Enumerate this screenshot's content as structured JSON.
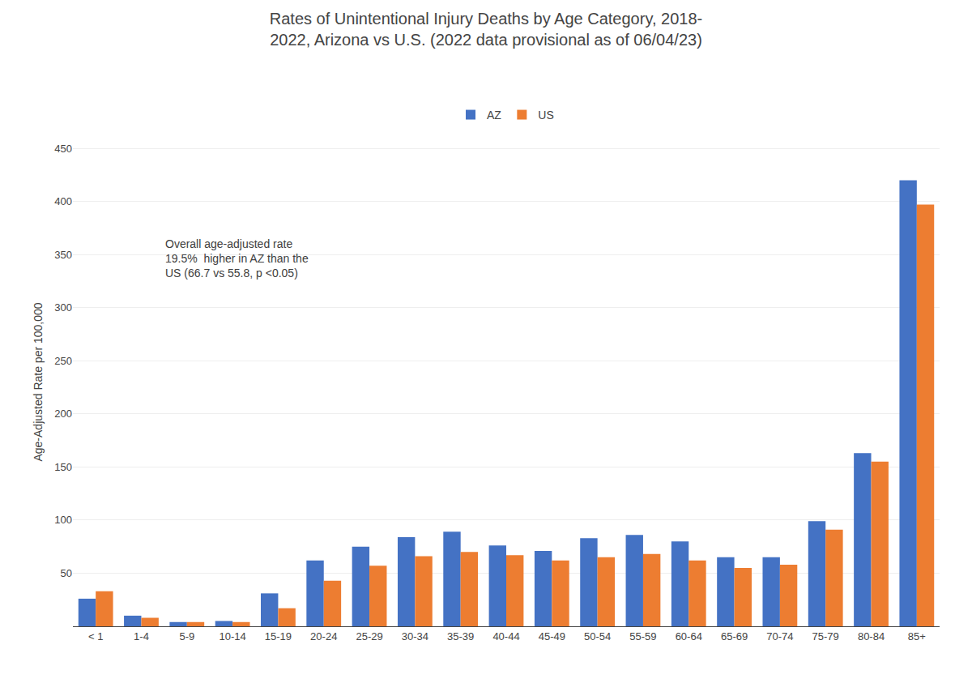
{
  "chart_data": {
    "type": "bar",
    "title": "Rates of Unintentional Injury Deaths by Age Category, 2018-\n2022, Arizona vs U.S. (2022 data provisional as of 06/04/23)",
    "ylabel": "Age-Adjusted Rate per 100,000",
    "categories": [
      "< 1",
      "1-4",
      "5-9",
      "10-14",
      "15-19",
      "20-24",
      "25-29",
      "30-34",
      "35-39",
      "40-44",
      "45-49",
      "50-54",
      "55-59",
      "60-64",
      "65-69",
      "70-74",
      "75-79",
      "80-84",
      "85+"
    ],
    "series": [
      {
        "name": "AZ",
        "color": "#4472C4",
        "values": [
          26,
          10,
          4,
          5,
          31,
          62,
          75,
          84,
          89,
          76,
          71,
          83,
          86,
          80,
          65,
          65,
          99,
          163,
          420
        ]
      },
      {
        "name": "US",
        "color": "#ED7D31",
        "values": [
          33,
          8,
          4,
          4,
          17,
          43,
          57,
          66,
          70,
          67,
          62,
          65,
          68,
          62,
          55,
          58,
          91,
          155,
          397
        ]
      }
    ],
    "ylim": [
      0,
      460
    ],
    "yticks": [
      50,
      100,
      150,
      200,
      250,
      300,
      350,
      400,
      450
    ],
    "grid": true,
    "legend": "top",
    "annotation": "Overall age-adjusted rate\n19.5%  higher in AZ than the\nUS (66.7 vs 55.8, p <0.05)"
  }
}
